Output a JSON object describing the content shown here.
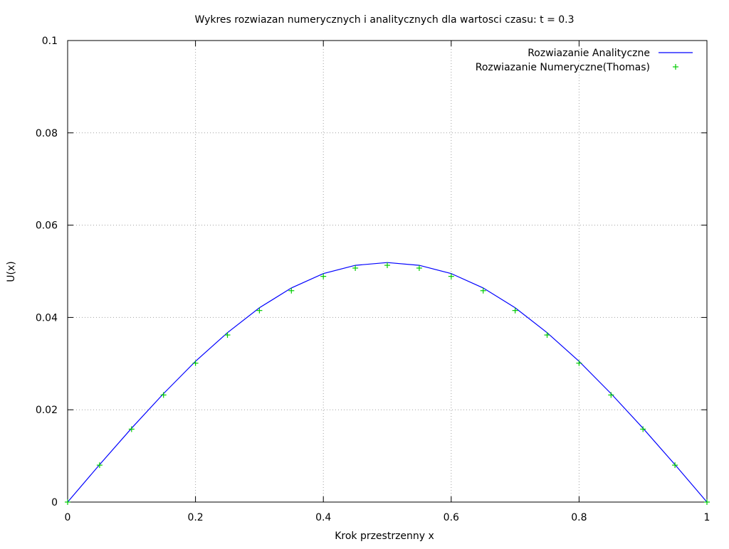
{
  "chart_data": {
    "type": "line",
    "title": "Wykres rozwiazan numerycznych i analitycznych dla wartosci czasu: t = 0.3",
    "xlabel": "Krok przestrzenny x",
    "ylabel": "U(x)",
    "xlim": [
      0,
      1
    ],
    "ylim": [
      0,
      0.1
    ],
    "x_ticks": [
      0,
      0.2,
      0.4,
      0.6,
      0.8,
      1
    ],
    "x_tick_labels": [
      "0",
      "0.2",
      "0.4",
      "0.6",
      "0.8",
      "1"
    ],
    "y_ticks": [
      0,
      0.02,
      0.04,
      0.06,
      0.08,
      0.1
    ],
    "y_tick_labels": [
      "0",
      "0.02",
      "0.04",
      "0.06",
      "0.08",
      "0.1"
    ],
    "grid": true,
    "legend_position": "top-right",
    "series": [
      {
        "name": "Rozwiazanie Analityczne",
        "style": "line",
        "color": "#0000ff",
        "x": [
          0,
          0.05,
          0.1,
          0.15,
          0.2,
          0.25,
          0.3,
          0.35,
          0.4,
          0.45,
          0.5,
          0.55,
          0.6,
          0.65,
          0.7,
          0.75,
          0.8,
          0.85,
          0.9,
          0.95,
          1
        ],
        "y": [
          0,
          0.0081,
          0.016,
          0.0235,
          0.0305,
          0.0367,
          0.0421,
          0.0464,
          0.0495,
          0.0513,
          0.0519,
          0.0513,
          0.0495,
          0.0464,
          0.0421,
          0.0367,
          0.0305,
          0.0235,
          0.016,
          0.0081,
          0
        ]
      },
      {
        "name": "Rozwiazanie Numeryczne(Thomas)",
        "style": "points",
        "marker": "+",
        "color": "#00cc00",
        "x": [
          0,
          0.05,
          0.1,
          0.15,
          0.2,
          0.25,
          0.3,
          0.35,
          0.4,
          0.45,
          0.5,
          0.55,
          0.6,
          0.65,
          0.7,
          0.75,
          0.8,
          0.85,
          0.9,
          0.95,
          1
        ],
        "y": [
          0,
          0.008,
          0.0158,
          0.0232,
          0.0301,
          0.0362,
          0.0415,
          0.0458,
          0.0489,
          0.0507,
          0.0513,
          0.0507,
          0.0489,
          0.0458,
          0.0415,
          0.0362,
          0.0301,
          0.0232,
          0.0158,
          0.008,
          0
        ]
      }
    ]
  }
}
